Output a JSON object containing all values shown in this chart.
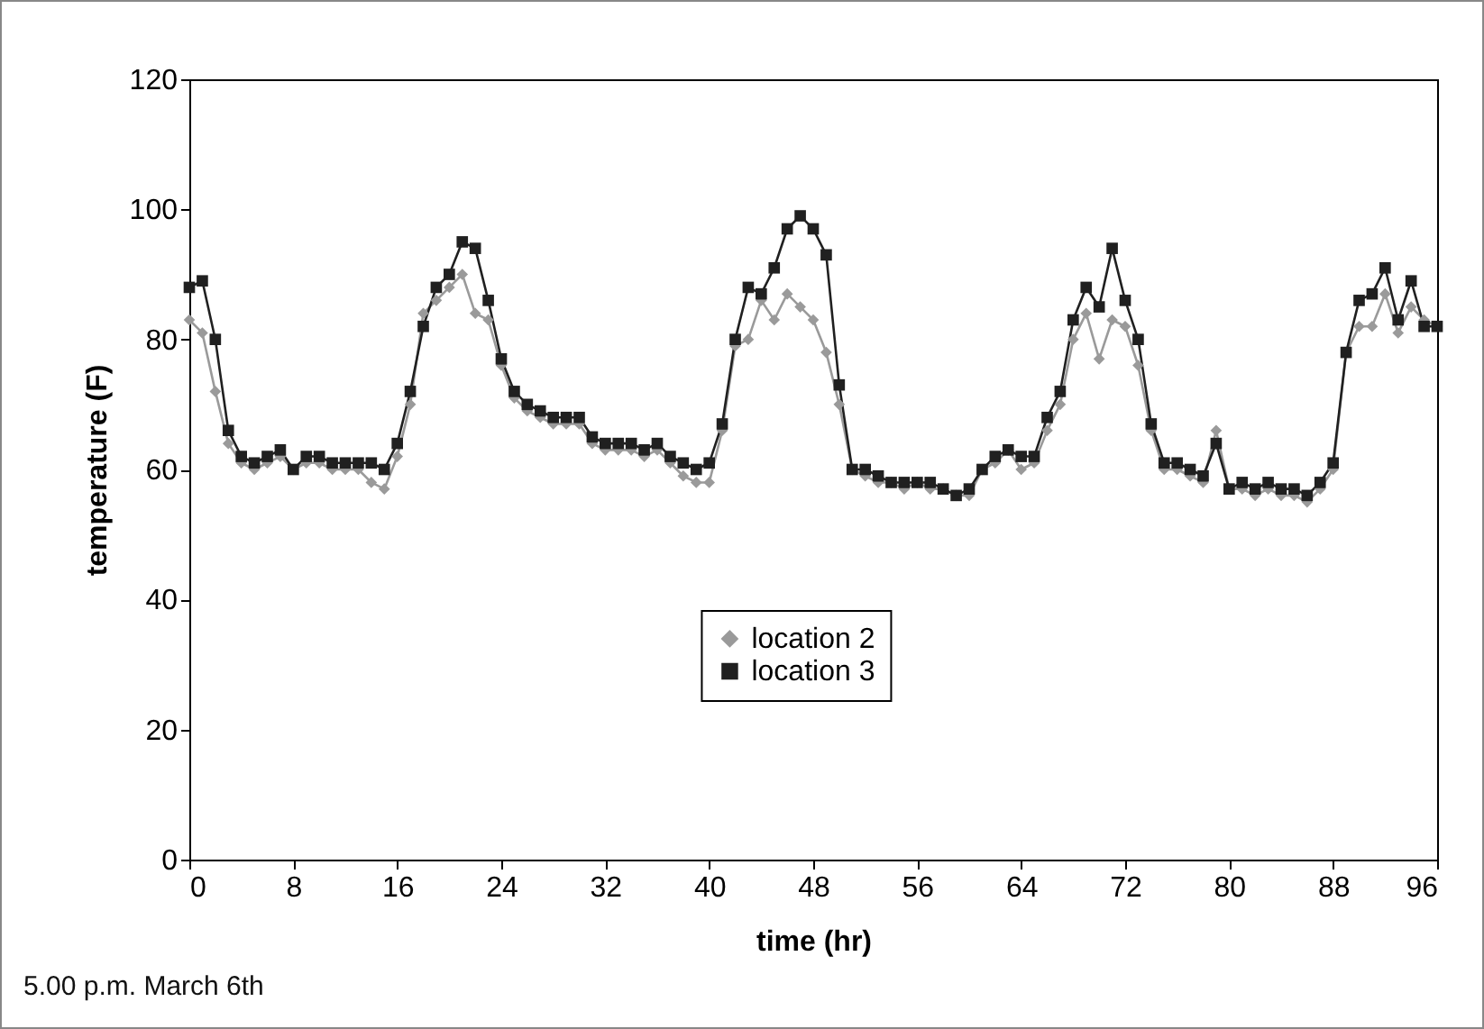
{
  "chart_data": {
    "type": "line",
    "xlabel": "time (hr)",
    "ylabel": "temperature (F)",
    "x": [
      0,
      1,
      2,
      3,
      4,
      5,
      6,
      7,
      8,
      9,
      10,
      11,
      12,
      13,
      14,
      15,
      16,
      17,
      18,
      19,
      20,
      21,
      22,
      23,
      24,
      25,
      26,
      27,
      28,
      29,
      30,
      31,
      32,
      33,
      34,
      35,
      36,
      37,
      38,
      39,
      40,
      41,
      42,
      43,
      44,
      45,
      46,
      47,
      48,
      49,
      50,
      51,
      52,
      53,
      54,
      55,
      56,
      57,
      58,
      59,
      60,
      61,
      62,
      63,
      64,
      65,
      66,
      67,
      68,
      69,
      70,
      71,
      72,
      73,
      74,
      75,
      76,
      77,
      78,
      79,
      80,
      81,
      82,
      83,
      84,
      85,
      86,
      87,
      88,
      89,
      90,
      91,
      92,
      93,
      94,
      95,
      96
    ],
    "series": [
      {
        "name": "location 2",
        "color": "#9a9a9a",
        "marker": "diamond",
        "values": [
          83,
          81,
          72,
          64,
          61,
          60,
          61,
          62,
          60,
          61,
          61,
          60,
          60,
          60,
          58,
          57,
          62,
          70,
          84,
          86,
          88,
          90,
          84,
          83,
          76,
          71,
          69,
          68,
          67,
          67,
          67,
          64,
          63,
          63,
          63,
          62,
          63,
          61,
          59,
          58,
          58,
          66,
          79,
          80,
          86,
          83,
          87,
          85,
          83,
          78,
          70,
          60,
          59,
          58,
          58,
          57,
          58,
          57,
          57,
          56,
          56,
          60,
          61,
          63,
          60,
          61,
          66,
          70,
          80,
          84,
          77,
          83,
          82,
          76,
          66,
          60,
          60,
          59,
          58,
          66,
          57,
          57,
          56,
          57,
          56,
          56,
          55,
          57,
          60,
          78,
          82,
          82,
          87,
          81,
          85,
          83,
          82
        ]
      },
      {
        "name": "location 3",
        "color": "#202020",
        "marker": "square",
        "values": [
          88,
          89,
          80,
          66,
          62,
          61,
          62,
          63,
          60,
          62,
          62,
          61,
          61,
          61,
          61,
          60,
          64,
          72,
          82,
          88,
          90,
          95,
          94,
          86,
          77,
          72,
          70,
          69,
          68,
          68,
          68,
          65,
          64,
          64,
          64,
          63,
          64,
          62,
          61,
          60,
          61,
          67,
          80,
          88,
          87,
          91,
          97,
          99,
          97,
          93,
          73,
          60,
          60,
          59,
          58,
          58,
          58,
          58,
          57,
          56,
          57,
          60,
          62,
          63,
          62,
          62,
          68,
          72,
          83,
          88,
          85,
          94,
          86,
          80,
          67,
          61,
          61,
          60,
          59,
          64,
          57,
          58,
          57,
          58,
          57,
          57,
          56,
          58,
          61,
          78,
          86,
          87,
          91,
          83,
          89,
          82,
          82
        ]
      }
    ],
    "xlim": [
      0,
      96
    ],
    "xticks": [
      0,
      8,
      16,
      24,
      32,
      40,
      48,
      56,
      64,
      72,
      80,
      88,
      96
    ],
    "ylim": [
      0,
      120
    ],
    "yticks": [
      0,
      20,
      40,
      60,
      80,
      100,
      120
    ],
    "grid": false,
    "legend": "center",
    "line_style": "solid",
    "annotations": [
      "5.00 p.m. March 6th"
    ]
  }
}
